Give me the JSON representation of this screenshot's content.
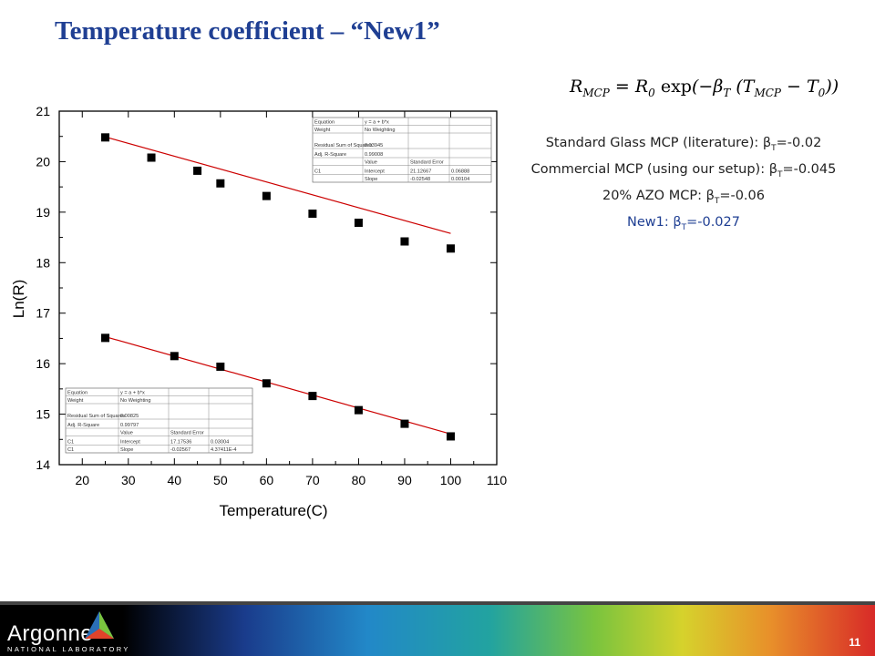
{
  "slide": {
    "title": "Temperature coefficient – “New1”",
    "page_number": "11"
  },
  "formula": {
    "lhs": "R",
    "lhs_sub": "MCP",
    "eq": " = ",
    "r0": "R",
    "r0_sub": "0",
    "exp": " exp",
    "open": "(−β",
    "beta_sub": "T",
    "mid": " (T",
    "t_sub": "MCP",
    "minus": " − T",
    "t0_sub": "0",
    "close": "))"
  },
  "notes": [
    {
      "label": "Standard Glass MCP (literature): β",
      "sub": "T",
      "value": "=-0.02"
    },
    {
      "label": "Commercial MCP (using our setup): β",
      "sub": "T",
      "value": "=-0.045"
    },
    {
      "label": "20% AZO MCP: β",
      "sub": "T",
      "value": "=-0.06"
    },
    {
      "label": "New1: β",
      "sub": "T",
      "value": "=-0.027"
    }
  ],
  "footer": {
    "logo_text": "Argonne",
    "logo_sub": "NATIONAL LABORATORY",
    "colors": [
      "#000000",
      "#1a3c8c",
      "#2288c8",
      "#22a3a0",
      "#7ac43e",
      "#d6d22c",
      "#e8902a",
      "#d82a28"
    ]
  },
  "chart_data": {
    "type": "scatter",
    "xlabel": "Temperature(C)",
    "ylabel": "Ln(R)",
    "xlim": [
      15,
      110
    ],
    "ylim": [
      14,
      21
    ],
    "xticks": [
      20,
      30,
      40,
      50,
      60,
      70,
      80,
      90,
      100,
      110
    ],
    "yticks": [
      14,
      15,
      16,
      17,
      18,
      19,
      20,
      21
    ],
    "marker_color": "#000000",
    "fit_color": "#cc0000",
    "series": [
      {
        "x": [
          25,
          35,
          45,
          50,
          60,
          70,
          80,
          90,
          100
        ],
        "y": [
          20.48,
          20.08,
          19.82,
          19.57,
          19.32,
          18.97,
          18.79,
          18.42,
          18.28
        ],
        "fit": {
          "intercept": 21.12667,
          "slope": -0.02548
        }
      },
      {
        "x": [
          25,
          40,
          50,
          60,
          70,
          80,
          90,
          100
        ],
        "y": [
          16.51,
          16.15,
          15.94,
          15.61,
          15.36,
          15.08,
          14.81,
          14.56
        ],
        "fit": {
          "intercept": 17.17536,
          "slope": -0.02567
        }
      }
    ],
    "stat_tables": [
      {
        "position": "top-right",
        "rows": [
          [
            "Equation",
            "y = a + b*x",
            ""
          ],
          [
            "Weight",
            "No Weighting",
            ""
          ],
          [
            "Residual Sum of Squares",
            "0.03945",
            ""
          ],
          [
            "Adj. R-Square",
            "0.99008",
            ""
          ],
          [
            "",
            "Value",
            "Standard Error"
          ],
          [
            "C1",
            "Intercept",
            "21.12667",
            "0.06888"
          ],
          [
            "",
            "Slope",
            "-0.02548",
            "0.00104"
          ]
        ]
      },
      {
        "position": "bottom-left",
        "rows": [
          [
            "Equation",
            "y = a + b*x",
            ""
          ],
          [
            "Weight",
            "No Weighting",
            ""
          ],
          [
            "Residual Sum of Squares",
            "0.00825",
            ""
          ],
          [
            "Adj. R-Square",
            "0.99797",
            ""
          ],
          [
            "",
            "Value",
            "Standard Error"
          ],
          [
            "C1",
            "Intercept",
            "17.17536",
            "0.03004"
          ],
          [
            "C1",
            "Slope",
            "-0.02567",
            "4.37411E-4"
          ]
        ]
      }
    ]
  }
}
